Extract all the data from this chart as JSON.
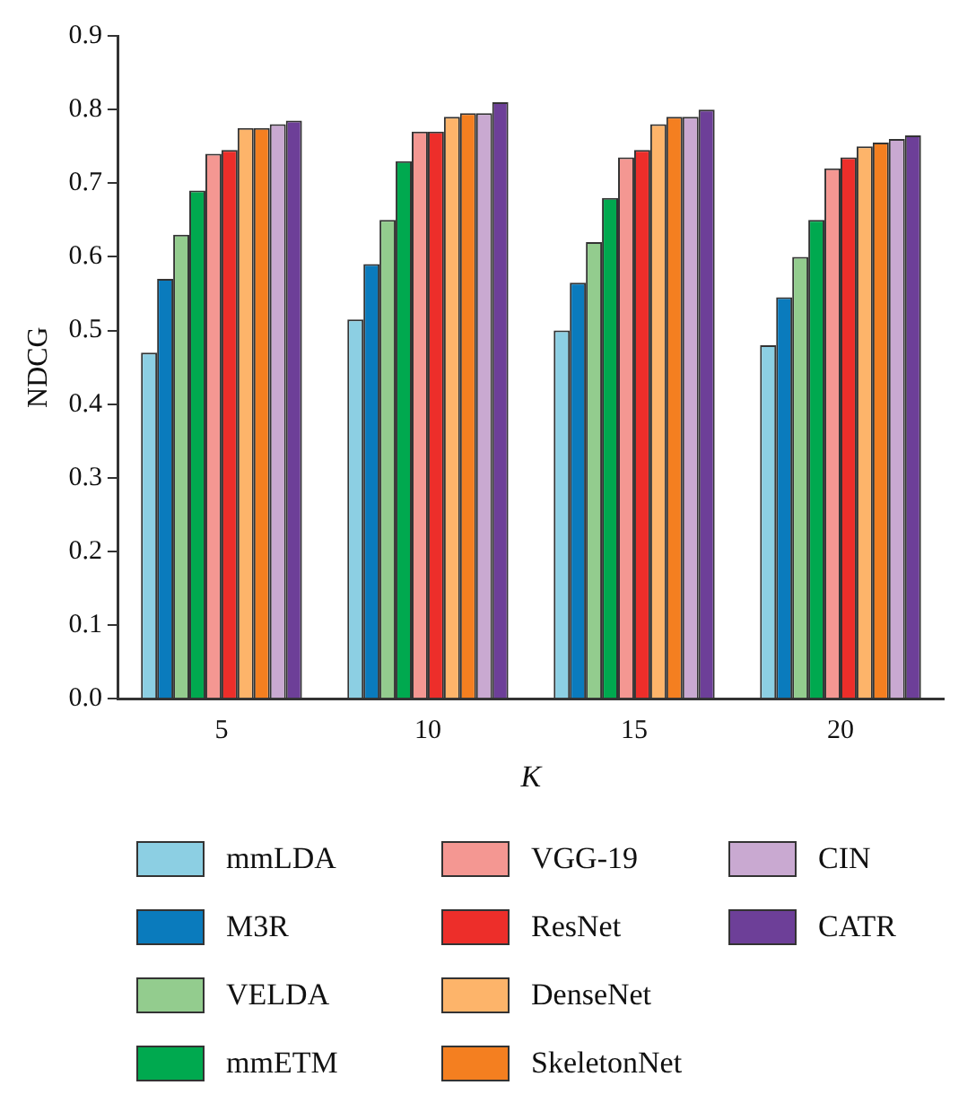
{
  "chart_data": {
    "type": "bar",
    "xlabel": "K",
    "ylabel": "NDCG",
    "categories": [
      "5",
      "10",
      "15",
      "20"
    ],
    "ylim": [
      0,
      0.9
    ],
    "yticks": [
      {
        "value": 0,
        "label": "0.0"
      },
      0.1,
      0.2,
      0.3,
      0.4,
      0.5,
      0.6,
      0.7,
      0.8,
      0.9
    ],
    "grid": false,
    "legend": "bottom",
    "series": [
      {
        "name": "mmLDA",
        "color": "#8ccfe3",
        "values": [
          0.47,
          0.515,
          0.5,
          0.48
        ]
      },
      {
        "name": "M3R",
        "color": "#0a7bbd",
        "values": [
          0.57,
          0.59,
          0.565,
          0.545
        ]
      },
      {
        "name": "VELDA",
        "color": "#93cc8e",
        "values": [
          0.63,
          0.65,
          0.62,
          0.6
        ]
      },
      {
        "name": "mmETM",
        "color": "#00a94f",
        "values": [
          0.69,
          0.73,
          0.68,
          0.65
        ]
      },
      {
        "name": "VGG-19",
        "color": "#f49792",
        "values": [
          0.74,
          0.77,
          0.735,
          0.72
        ]
      },
      {
        "name": "ResNet",
        "color": "#ed2e2a",
        "values": [
          0.745,
          0.77,
          0.745,
          0.735
        ]
      },
      {
        "name": "DenseNet",
        "color": "#fdb46a",
        "values": [
          0.775,
          0.79,
          0.78,
          0.75
        ]
      },
      {
        "name": "SkeletonNet",
        "color": "#f47f20",
        "values": [
          0.775,
          0.795,
          0.79,
          0.755
        ]
      },
      {
        "name": "CIN",
        "color": "#c9a9d1",
        "values": [
          0.78,
          0.795,
          0.79,
          0.76
        ]
      },
      {
        "name": "CATR",
        "color": "#6d3f98",
        "values": [
          0.785,
          0.81,
          0.8,
          0.765
        ]
      }
    ]
  }
}
